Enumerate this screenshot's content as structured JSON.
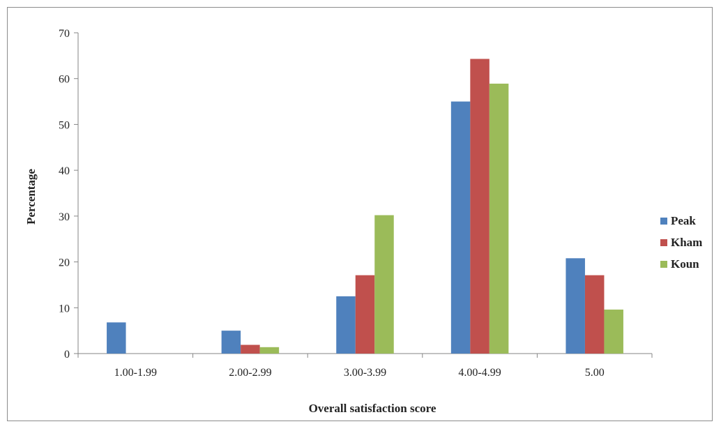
{
  "chart_data": {
    "type": "bar",
    "title": "",
    "xlabel": "Overall satisfaction score",
    "ylabel": "Percentage",
    "ylim": [
      0,
      70
    ],
    "yticks": [
      0,
      10,
      20,
      30,
      40,
      50,
      60,
      70
    ],
    "categories": [
      "1.00-1.99",
      "2.00-2.99",
      "3.00-3.99",
      "4.00-4.99",
      "5.00"
    ],
    "series": [
      {
        "name": "Peak",
        "color": "#4F81BD",
        "values": [
          6.8,
          5.0,
          12.5,
          55.0,
          20.8
        ]
      },
      {
        "name": "Kham",
        "color": "#C0504D",
        "values": [
          0,
          1.9,
          17.1,
          64.3,
          17.1
        ]
      },
      {
        "name": "Koun",
        "color": "#9BBB59",
        "values": [
          0,
          1.4,
          30.2,
          58.9,
          9.6
        ]
      }
    ],
    "legend_position": "right",
    "grid": false
  }
}
